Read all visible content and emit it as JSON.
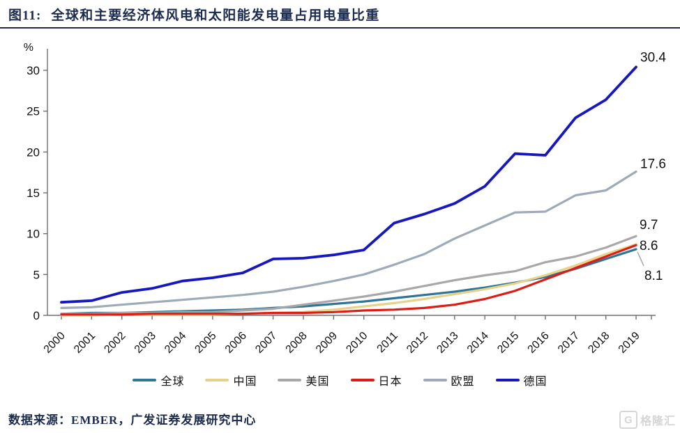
{
  "figure": {
    "tag": "图11:",
    "title": "全球和主要经济体风电和太阳能发电量占用电量比重"
  },
  "source": {
    "label": "数据来源：EMBER，广发证券发展研究中心"
  },
  "watermark": {
    "icon": "G",
    "text": "格隆汇"
  },
  "chart_data": {
    "type": "line",
    "title": "全球和主要经济体风电和太阳能发电量占用电量比重",
    "xlabel": "",
    "ylabel": "%",
    "ylim": [
      0,
      32
    ],
    "yticks": [
      0,
      5,
      10,
      15,
      20,
      25,
      30
    ],
    "grid": false,
    "legend_position": "bottom",
    "x": [
      2000,
      2001,
      2002,
      2003,
      2004,
      2005,
      2006,
      2007,
      2008,
      2009,
      2010,
      2011,
      2012,
      2013,
      2014,
      2015,
      2016,
      2017,
      2018,
      2019
    ],
    "series": [
      {
        "name": "全球",
        "color": "#2e7596",
        "width": 3.2,
        "values": [
          0.2,
          0.3,
          0.3,
          0.4,
          0.5,
          0.6,
          0.7,
          0.9,
          1.1,
          1.4,
          1.7,
          2.1,
          2.5,
          2.9,
          3.4,
          4.0,
          4.7,
          5.7,
          6.9,
          8.1
        ],
        "end_label": {
          "text": "8.1",
          "dx": 12,
          "dy": 44,
          "leader": true
        }
      },
      {
        "name": "中国",
        "color": "#e7d28b",
        "width": 3.2,
        "values": [
          0.0,
          0.0,
          0.1,
          0.1,
          0.1,
          0.1,
          0.2,
          0.3,
          0.4,
          0.7,
          1.1,
          1.5,
          2.0,
          2.6,
          3.2,
          3.9,
          4.9,
          6.1,
          7.5,
          8.7
        ],
        "end_label": null
      },
      {
        "name": "美国",
        "color": "#a8a8a8",
        "width": 3.2,
        "values": [
          0.2,
          0.2,
          0.3,
          0.3,
          0.4,
          0.4,
          0.6,
          0.8,
          1.3,
          1.8,
          2.3,
          2.9,
          3.6,
          4.3,
          4.9,
          5.4,
          6.5,
          7.2,
          8.3,
          9.7
        ],
        "end_label": {
          "text": "9.7",
          "dx": 5,
          "dy": -10,
          "leader": false
        }
      },
      {
        "name": "日本",
        "color": "#dd1d15",
        "width": 3.2,
        "values": [
          0.1,
          0.1,
          0.1,
          0.2,
          0.2,
          0.2,
          0.2,
          0.3,
          0.3,
          0.4,
          0.6,
          0.7,
          0.9,
          1.3,
          2.0,
          3.0,
          4.4,
          5.8,
          7.2,
          8.6
        ],
        "end_label": {
          "text": "8.6",
          "dx": 5,
          "dy": 7,
          "leader": false
        }
      },
      {
        "name": "欧盟",
        "color": "#9faab9",
        "width": 3.2,
        "values": [
          0.9,
          1.0,
          1.3,
          1.6,
          1.9,
          2.2,
          2.5,
          2.9,
          3.5,
          4.2,
          5.0,
          6.2,
          7.5,
          9.4,
          11.0,
          12.6,
          12.7,
          14.7,
          15.3,
          17.6
        ],
        "end_label": {
          "text": "17.6",
          "dx": 6,
          "dy": -5,
          "leader": false
        }
      },
      {
        "name": "德国",
        "color": "#1717c0",
        "width": 3.8,
        "values": [
          1.6,
          1.8,
          2.8,
          3.3,
          4.2,
          4.6,
          5.2,
          6.9,
          7.0,
          7.4,
          8.0,
          11.3,
          12.4,
          13.7,
          15.8,
          19.8,
          19.6,
          24.2,
          26.4,
          30.4
        ],
        "end_label": {
          "text": "30.4",
          "dx": 6,
          "dy": -8,
          "leader": false
        }
      }
    ]
  }
}
